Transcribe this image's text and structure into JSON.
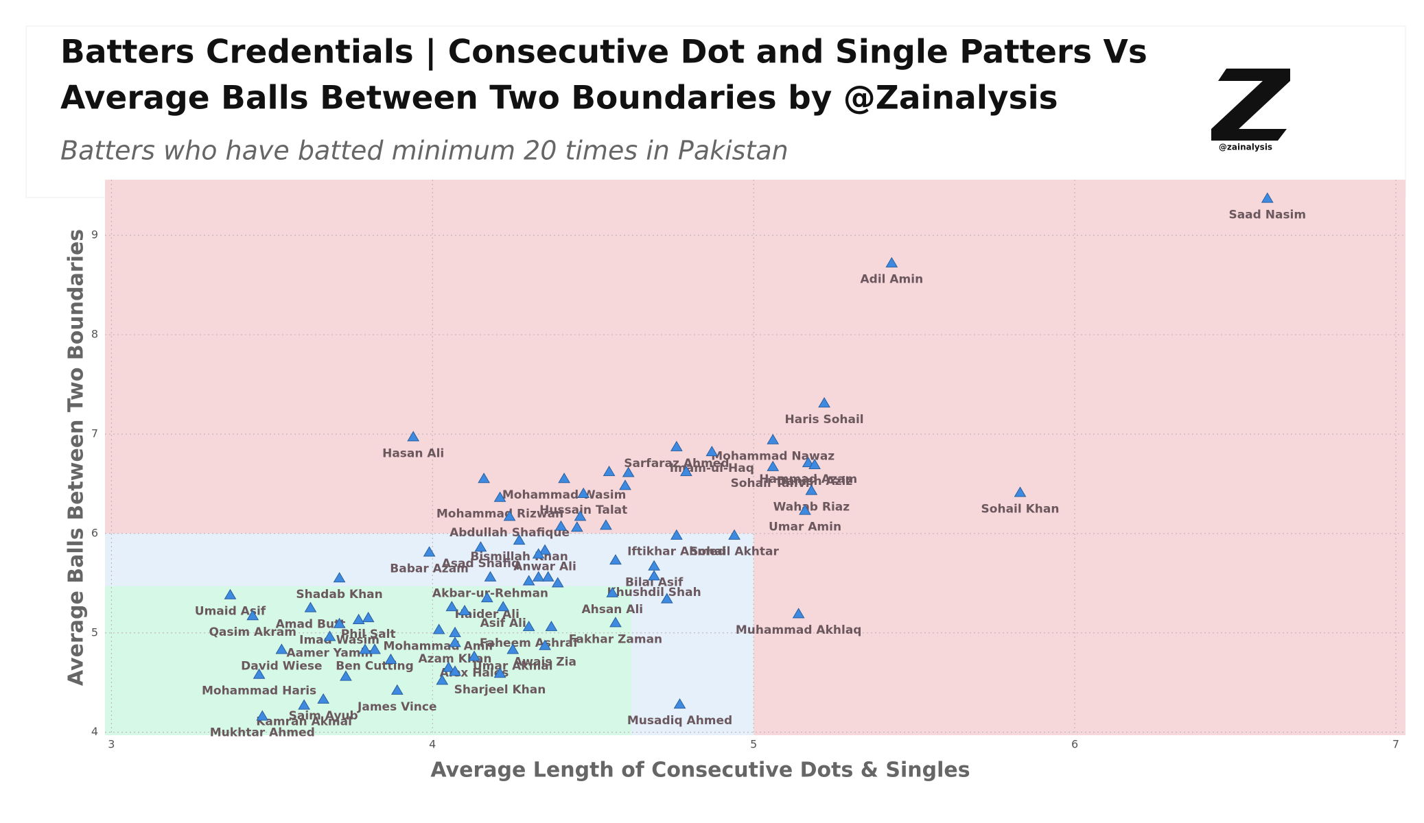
{
  "chart_data": {
    "type": "scatter",
    "title": "Batters Credentials | Consecutive Dot and Single Patters Vs",
    "title_line_2": "Average Balls Between Two Boundaries by @Zainalysis",
    "subtitle": "Batters who have batted minimum 20 times in Pakistan",
    "logo_text": "@zainalysis",
    "x_label": "Average Length of Consecutive Dots & Singles",
    "y_label": "Average Balls Between Two Boundaries",
    "xlim": [
      2.98,
      7.03
    ],
    "ylim": [
      3.97,
      9.56
    ],
    "xticks": [
      3,
      4,
      5,
      6,
      7
    ],
    "yticks": [
      4,
      5,
      6,
      7,
      8,
      9
    ],
    "grid": true,
    "color": "#3d8ae0",
    "regions": [
      {
        "color": "#f6d8db",
        "xlim": [
          2.98,
          7.03
        ],
        "ylim": [
          3.97,
          9.56
        ]
      },
      {
        "color": "#e6f0fb",
        "xlim": [
          2.98,
          5
        ],
        "ylim": [
          3.97,
          6
        ]
      },
      {
        "color": "#d6f8e6",
        "xlim": [
          2.98,
          4.62
        ],
        "ylim": [
          3.97,
          5.47
        ]
      }
    ],
    "point_labels": [
      "Saad Nasim",
      "Adil Amin",
      "Haris Sohail",
      "Mohammad Nawaz",
      "Sarfaraz Ahmed",
      "Imam-ul-Haq",
      "Hammad Azam",
      "Danish Aziz",
      "Sohail Tanvir",
      null,
      null,
      "Mohammad Wasim",
      null,
      null,
      "Hasan Ali",
      null,
      "Mohammad Rizwan",
      "Hussain Talat",
      "Wahab Riaz",
      "Sohail Khan",
      "Umar Amin",
      "Abdullah Shafique",
      null,
      null,
      null,
      null,
      "Iftikhar Ahmed",
      "Sohail Akhtar",
      "Bismillah Khan",
      "Babar Azam",
      "Asad Shafiq",
      "Anwar Ali",
      null,
      null,
      "Bilal Asif",
      "Khushdil Shah",
      "Shadab Khan",
      "Akbar-ur-Rehman",
      null,
      null,
      null,
      null,
      "Umaid Asif",
      "Ahsan Ali",
      "Haider Ali",
      null,
      "Amad Butt",
      null,
      null,
      "Asif Ali",
      "Qasim Akram",
      "Phil Salt",
      null,
      "Imad Wasim",
      "Fakhar Zaman",
      "Muhammad Akhlaq",
      "Faheem Ashraf",
      null,
      "Mohammad Amir",
      null,
      "Aamer Yamin",
      "Azam Khan",
      "Awais Zia",
      "David Wiese",
      "Ben Cutting",
      null,
      "Umar Akmal",
      null,
      "Alex Hales",
      null,
      null,
      "Sharjeel Khan",
      "Mohammad Haris",
      null,
      null,
      "James Vince",
      "Saim Ayub",
      "Kamran Akmal",
      "Mukhtar Ahmed",
      "Musadiq Ahmed"
    ],
    "x": [
      6.6,
      5.43,
      5.22,
      5.06,
      4.76,
      4.87,
      5.17,
      5.19,
      5.06,
      4.79,
      4.55,
      4.41,
      4.61,
      4.6,
      3.94,
      4.16,
      4.21,
      4.47,
      5.18,
      5.83,
      5.16,
      4.24,
      4.46,
      4.54,
      4.4,
      4.45,
      4.76,
      4.94,
      4.27,
      3.99,
      4.15,
      4.35,
      4.33,
      4.57,
      4.69,
      4.69,
      3.71,
      4.18,
      4.3,
      4.33,
      4.36,
      4.39,
      3.37,
      4.56,
      4.17,
      4.73,
      3.62,
      4.06,
      4.1,
      4.22,
      3.44,
      3.8,
      3.77,
      3.71,
      4.57,
      5.14,
      4.3,
      4.37,
      4.02,
      4.07,
      3.68,
      4.07,
      4.35,
      3.53,
      3.82,
      3.79,
      4.25,
      3.87,
      4.13,
      4.05,
      4.07,
      4.21,
      3.46,
      3.73,
      4.03,
      3.89,
      3.66,
      3.6,
      3.47,
      4.77
    ],
    "values": [
      9.37,
      8.72,
      7.31,
      6.94,
      6.87,
      6.82,
      6.71,
      6.69,
      6.67,
      6.62,
      6.62,
      6.55,
      6.61,
      6.48,
      6.97,
      6.55,
      6.36,
      6.4,
      6.43,
      6.41,
      6.23,
      6.17,
      6.17,
      6.08,
      6.07,
      6.06,
      5.98,
      5.98,
      5.93,
      5.81,
      5.86,
      5.83,
      5.79,
      5.73,
      5.67,
      5.57,
      5.55,
      5.56,
      5.52,
      5.56,
      5.56,
      5.5,
      5.38,
      5.4,
      5.35,
      5.34,
      5.25,
      5.26,
      5.22,
      5.26,
      5.17,
      5.15,
      5.13,
      5.09,
      5.1,
      5.19,
      5.06,
      5.06,
      5.03,
      5.0,
      4.96,
      4.9,
      4.87,
      4.83,
      4.83,
      4.83,
      4.83,
      4.73,
      4.76,
      4.65,
      4.61,
      4.59,
      4.58,
      4.56,
      4.52,
      4.42,
      4.33,
      4.27,
      4.16,
      4.28
    ]
  }
}
